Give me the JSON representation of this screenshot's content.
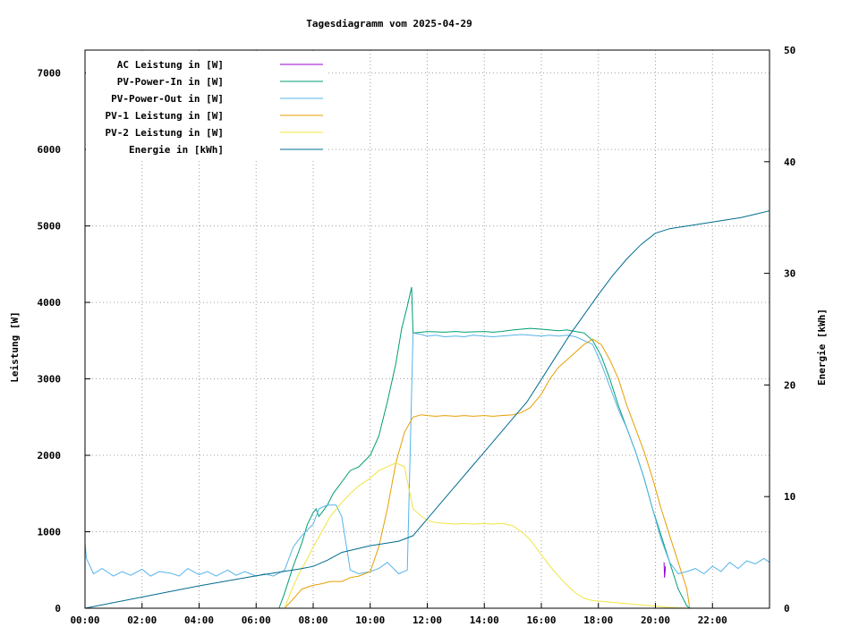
{
  "chart_data": {
    "type": "line",
    "title": "Tagesdiagramm vom 2025-04-29",
    "xlabel": "",
    "ylabel": "Leistung [W]",
    "y2label": "Energie [kWh]",
    "xlim": [
      0,
      24
    ],
    "ylim": [
      0,
      7300
    ],
    "y2lim": [
      0,
      50
    ],
    "x_ticks": [
      {
        "value": 0,
        "label": "00:00"
      },
      {
        "value": 2,
        "label": "02:00"
      },
      {
        "value": 4,
        "label": "04:00"
      },
      {
        "value": 6,
        "label": "06:00"
      },
      {
        "value": 8,
        "label": "08:00"
      },
      {
        "value": 10,
        "label": "10:00"
      },
      {
        "value": 12,
        "label": "12:00"
      },
      {
        "value": 14,
        "label": "14:00"
      },
      {
        "value": 16,
        "label": "16:00"
      },
      {
        "value": 18,
        "label": "18:00"
      },
      {
        "value": 20,
        "label": "20:00"
      },
      {
        "value": 22,
        "label": "22:00"
      }
    ],
    "y_ticks": [
      0,
      1000,
      2000,
      3000,
      4000,
      5000,
      6000,
      7000
    ],
    "y2_ticks": [
      0,
      10,
      20,
      30,
      40,
      50
    ],
    "grid": true,
    "legend_position": "top-left",
    "series": [
      {
        "name": "AC Leistung in [W]",
        "color": "#9400d3",
        "axis": "y1",
        "x": [
          20.3,
          20.32,
          20.35
        ],
        "y": [
          600,
          400,
          550
        ]
      },
      {
        "name": "PV-Power-In in [W]",
        "color": "#009e73",
        "axis": "y1",
        "x": [
          0,
          6.8,
          7.0,
          7.3,
          7.6,
          7.8,
          8.0,
          8.1,
          8.2,
          8.3,
          8.5,
          8.7,
          9.0,
          9.3,
          9.6,
          10.0,
          10.3,
          10.6,
          10.9,
          11.1,
          11.3,
          11.45,
          11.5,
          11.8,
          12.0,
          12.3,
          12.6,
          13.0,
          13.3,
          13.6,
          14.0,
          14.3,
          14.6,
          15.0,
          15.3,
          15.6,
          16.0,
          16.3,
          16.6,
          16.9,
          17.2,
          17.5,
          17.8,
          18.1,
          18.4,
          18.7,
          19.0,
          19.3,
          19.6,
          19.9,
          20.2,
          20.5,
          20.8,
          21.1,
          21.2
        ],
        "y": [
          0,
          0,
          200,
          550,
          850,
          1100,
          1250,
          1300,
          1200,
          1250,
          1350,
          1500,
          1650,
          1800,
          1850,
          2000,
          2250,
          2700,
          3200,
          3650,
          3950,
          4200,
          3600,
          3610,
          3620,
          3615,
          3610,
          3620,
          3610,
          3615,
          3620,
          3610,
          3620,
          3640,
          3650,
          3660,
          3650,
          3640,
          3630,
          3640,
          3620,
          3600,
          3500,
          3300,
          3000,
          2650,
          2350,
          2050,
          1700,
          1300,
          950,
          600,
          250,
          30,
          0
        ]
      },
      {
        "name": "PV-Power-Out in [W]",
        "color": "#56b4e9",
        "axis": "y1",
        "x": [
          0,
          0.05,
          0.3,
          0.6,
          1.0,
          1.3,
          1.6,
          2.0,
          2.3,
          2.6,
          3.0,
          3.3,
          3.6,
          4.0,
          4.3,
          4.6,
          5.0,
          5.3,
          5.6,
          6.0,
          6.3,
          6.6,
          7.0,
          7.3,
          7.6,
          8.0,
          8.2,
          8.5,
          8.8,
          9.0,
          9.3,
          9.6,
          10.0,
          10.3,
          10.6,
          11.0,
          11.3,
          11.5,
          11.8,
          12.0,
          12.3,
          12.6,
          13.0,
          13.3,
          13.6,
          14.0,
          14.3,
          14.6,
          15.0,
          15.3,
          15.6,
          16.0,
          16.3,
          16.6,
          16.9,
          17.2,
          17.5,
          17.8,
          18.1,
          18.4,
          18.7,
          19.0,
          19.3,
          19.6,
          19.9,
          20.2,
          20.5,
          20.8,
          21.1,
          21.4,
          21.7,
          22.0,
          22.3,
          22.6,
          22.9,
          23.2,
          23.5,
          23.8,
          24.0
        ],
        "y": [
          850,
          650,
          450,
          520,
          420,
          480,
          430,
          510,
          420,
          480,
          460,
          420,
          520,
          440,
          480,
          420,
          500,
          430,
          480,
          420,
          450,
          420,
          500,
          800,
          950,
          1100,
          1300,
          1350,
          1350,
          1200,
          500,
          450,
          480,
          520,
          600,
          450,
          500,
          3600,
          3580,
          3560,
          3570,
          3550,
          3560,
          3550,
          3570,
          3560,
          3550,
          3560,
          3570,
          3580,
          3570,
          3560,
          3570,
          3560,
          3570,
          3550,
          3500,
          3450,
          3200,
          2900,
          2600,
          2350,
          2050,
          1700,
          1300,
          900,
          600,
          450,
          480,
          520,
          450,
          550,
          480,
          600,
          520,
          620,
          580,
          650,
          600
        ]
      },
      {
        "name": "PV-1 Leistung in [W]",
        "color": "#e69f00",
        "axis": "y1",
        "x": [
          0,
          7.0,
          7.3,
          7.6,
          8.0,
          8.3,
          8.6,
          9.0,
          9.3,
          9.6,
          10.0,
          10.3,
          10.6,
          10.9,
          11.2,
          11.5,
          11.8,
          12.0,
          12.3,
          12.6,
          13.0,
          13.3,
          13.6,
          14.0,
          14.3,
          14.6,
          15.0,
          15.3,
          15.6,
          16.0,
          16.3,
          16.6,
          16.9,
          17.2,
          17.5,
          17.8,
          18.1,
          18.4,
          18.7,
          19.0,
          19.3,
          19.6,
          19.9,
          20.2,
          20.5,
          20.8,
          21.1,
          21.2
        ],
        "y": [
          0,
          0,
          120,
          250,
          300,
          320,
          350,
          350,
          400,
          420,
          480,
          800,
          1300,
          1900,
          2300,
          2500,
          2530,
          2520,
          2510,
          2520,
          2510,
          2520,
          2510,
          2520,
          2510,
          2520,
          2530,
          2560,
          2620,
          2800,
          3000,
          3150,
          3250,
          3350,
          3450,
          3520,
          3450,
          3250,
          3000,
          2650,
          2350,
          2050,
          1700,
          1300,
          950,
          600,
          250,
          0
        ]
      },
      {
        "name": "PV-2 Leistung in [W]",
        "color": "#f0e442",
        "axis": "y1",
        "x": [
          0,
          7.0,
          7.2,
          7.5,
          7.8,
          8.0,
          8.3,
          8.6,
          9.0,
          9.3,
          9.6,
          10.0,
          10.3,
          10.6,
          10.9,
          11.2,
          11.5,
          11.8,
          12.0,
          12.3,
          12.6,
          13.0,
          13.3,
          13.6,
          14.0,
          14.3,
          14.6,
          15.0,
          15.3,
          15.6,
          16.0,
          16.3,
          16.6,
          16.9,
          17.2,
          17.5,
          17.8,
          18.1,
          18.4,
          18.7,
          19.0,
          19.3,
          19.6,
          19.9,
          20.2,
          20.5,
          20.8,
          21.1,
          21.3
        ],
        "y": [
          0,
          0,
          200,
          450,
          650,
          800,
          1000,
          1200,
          1380,
          1500,
          1600,
          1700,
          1800,
          1850,
          1900,
          1850,
          1300,
          1200,
          1150,
          1120,
          1110,
          1100,
          1110,
          1100,
          1110,
          1100,
          1110,
          1080,
          1000,
          900,
          700,
          550,
          420,
          300,
          200,
          130,
          100,
          90,
          80,
          70,
          60,
          50,
          40,
          30,
          20,
          10,
          5,
          0,
          0
        ]
      },
      {
        "name": "Energie in [kWh]",
        "color": "#006b8f",
        "axis": "y2",
        "x": [
          0,
          1,
          2,
          3,
          4,
          5,
          6,
          7,
          7.5,
          8.0,
          8.5,
          9.0,
          9.5,
          10.0,
          10.5,
          11.0,
          11.5,
          12.0,
          12.5,
          13.0,
          13.5,
          14.0,
          14.5,
          15.0,
          15.5,
          16.0,
          16.5,
          17.0,
          17.5,
          18.0,
          18.5,
          19.0,
          19.5,
          20.0,
          20.5,
          21.0,
          21.5,
          22.0,
          22.5,
          23.0,
          23.5,
          24.0
        ],
        "y": [
          0,
          0.5,
          1.0,
          1.5,
          2.0,
          2.45,
          2.9,
          3.3,
          3.5,
          3.75,
          4.3,
          5.0,
          5.3,
          5.6,
          5.8,
          6.0,
          6.5,
          8.0,
          9.5,
          11.0,
          12.5,
          14.0,
          15.5,
          17.0,
          18.5,
          20.5,
          22.5,
          24.5,
          26.3,
          28.1,
          29.8,
          31.3,
          32.6,
          33.6,
          34.0,
          34.2,
          34.4,
          34.6,
          34.8,
          35.0,
          35.3,
          35.6
        ]
      }
    ]
  }
}
